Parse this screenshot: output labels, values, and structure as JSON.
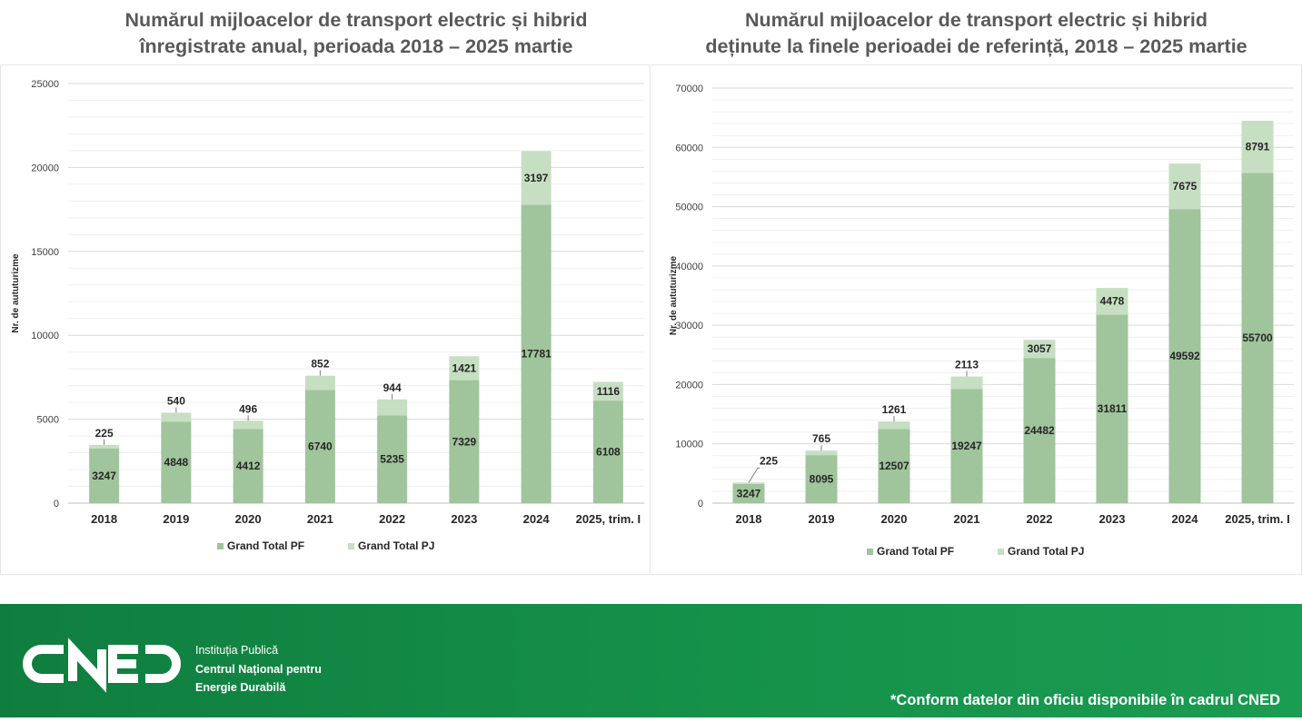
{
  "colors": {
    "pf": "#a0c49b",
    "pj": "#c6dfc2",
    "footer": "#15914a",
    "text": "#262626",
    "title": "#595959",
    "grid": "#d9d9d9"
  },
  "chart_data": [
    {
      "type": "bar",
      "stacked": true,
      "title_line1": "Numărul mijloacelor de transport electric și hibrid",
      "title_line2": "înregistrate anual,  perioada 2018 – 2025 martie",
      "ylabel": "Nr. de aututurizme",
      "xlabel": "",
      "ylim": [
        0,
        25000
      ],
      "yticks": [
        "0",
        "5000",
        "10000",
        "15000",
        "20000",
        "25000"
      ],
      "grid": true,
      "legend": "bottom",
      "categories": [
        "2018",
        "2019",
        "2020",
        "2021",
        "2022",
        "2023",
        "2024",
        "2025, trim. I"
      ],
      "series": [
        {
          "name": "Grand Total PF",
          "values": [
            3247,
            4848,
            4412,
            6740,
            5235,
            7329,
            17781,
            6108
          ]
        },
        {
          "name": "Grand Total PJ",
          "values": [
            225,
            540,
            496,
            852,
            944,
            1421,
            3197,
            1116
          ]
        }
      ]
    },
    {
      "type": "bar",
      "stacked": true,
      "title_line1": "Numărul mijloacelor de transport electric și hibrid",
      "title_line2": "deținute la finele perioadei de referință, 2018 – 2025 martie",
      "ylabel": "Nr. de aututurizme",
      "xlabel": "",
      "ylim": [
        0,
        70000
      ],
      "yticks": [
        "0",
        "10000",
        "20000",
        "30000",
        "40000",
        "50000",
        "60000",
        "70000"
      ],
      "grid": true,
      "legend": "bottom",
      "categories": [
        "2018",
        "2019",
        "2020",
        "2021",
        "2022",
        "2023",
        "2024",
        "2025, trim. I"
      ],
      "series": [
        {
          "name": "Grand Total PF",
          "values": [
            3247,
            8095,
            12507,
            19247,
            24482,
            31811,
            49592,
            55700
          ]
        },
        {
          "name": "Grand Total PJ",
          "values": [
            225,
            765,
            1261,
            2113,
            3057,
            4478,
            7675,
            8791
          ]
        }
      ]
    }
  ],
  "footer": {
    "logo_text": "CNED",
    "institution_line1": "Instituția Publică",
    "institution_line2": "Centrul Național pentru",
    "institution_line3": "Energie Durabilă",
    "note": "*Conform datelor din oficiu disponibile în cadrul CNED"
  }
}
